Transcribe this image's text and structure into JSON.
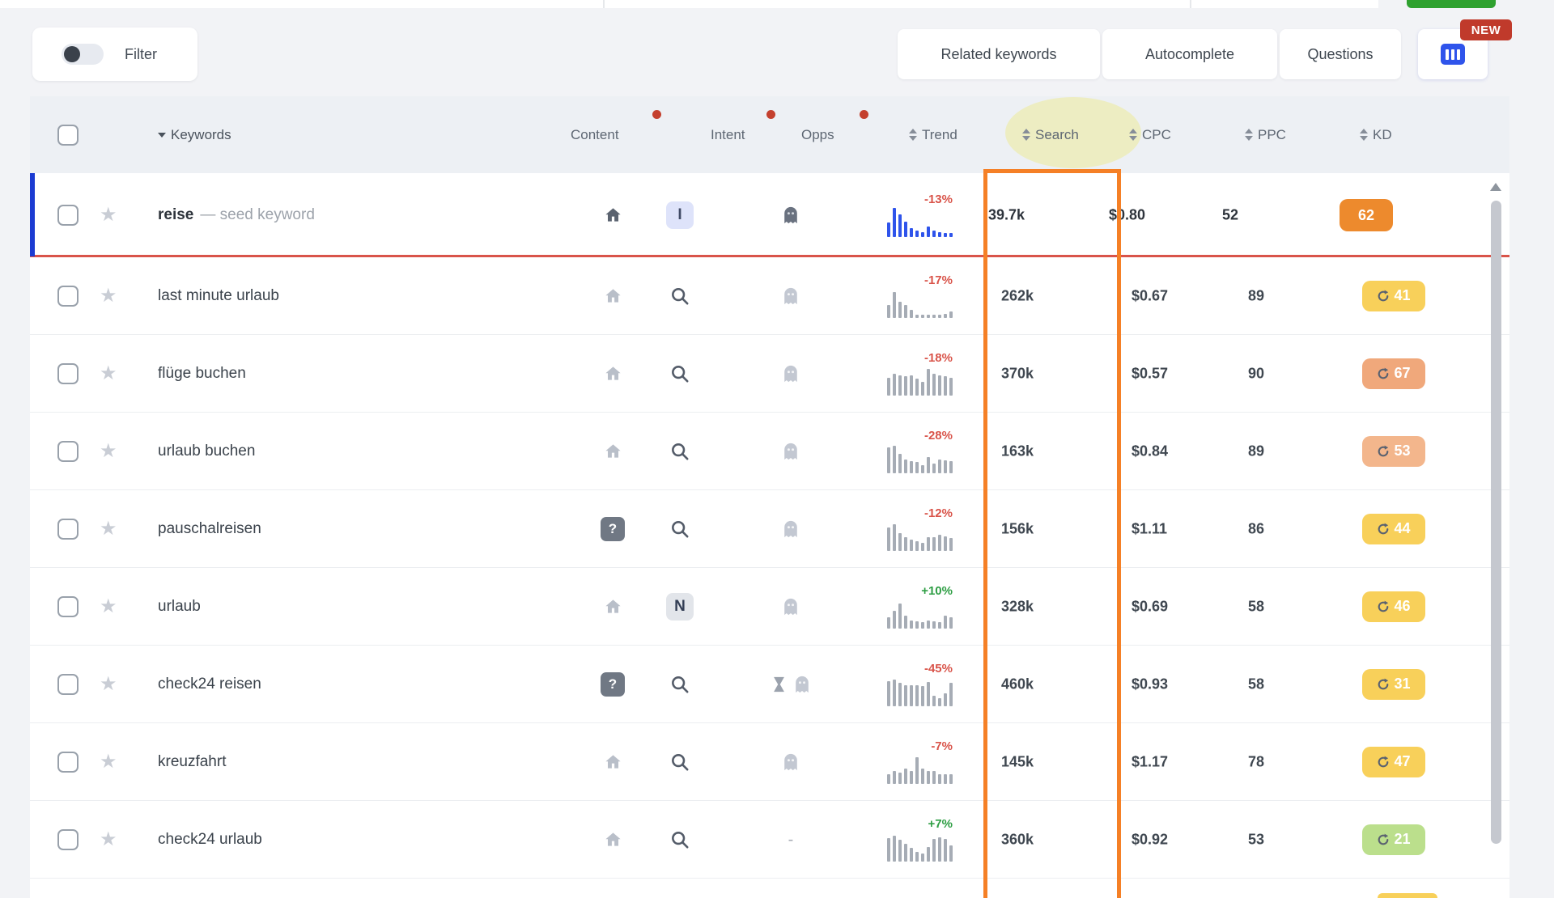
{
  "toolbar": {
    "filter_label": "Filter",
    "tabs": [
      {
        "label": "Related keywords"
      },
      {
        "label": "Autocomplete"
      },
      {
        "label": "Questions"
      }
    ],
    "new_badge": "NEW",
    "columns_button_icon": "columns-icon"
  },
  "table": {
    "header": {
      "keywords": "Keywords",
      "content": "Content",
      "intent": "Intent",
      "opps": "Opps",
      "trend": "Trend",
      "search": "Search",
      "cpc": "CPC",
      "ppc": "PPC",
      "kd": "KD"
    },
    "rows": [
      {
        "keyword": "reise",
        "suffix": "— seed keyword",
        "seed": true,
        "content": "home-icon-dark",
        "intent": "intent-badge-I",
        "opps": [
          "ghost-icon-dark"
        ],
        "trend": "-13%",
        "trend_color": "red",
        "spark_color": "#2f54eb",
        "spark": [
          50,
          100,
          78,
          54,
          30,
          22,
          17,
          36,
          22,
          18,
          15,
          13
        ],
        "search": "39.7k",
        "cpc": "$0.80",
        "ppc": "52",
        "kd": "62",
        "kd_bg": "#ed8a2d",
        "kd_refresh": false
      },
      {
        "keyword": "last minute urlaub",
        "suffix": "",
        "seed": false,
        "content": "home-icon-light",
        "intent": "search-intent-icon",
        "opps": [
          "ghost-icon-light"
        ],
        "trend": "-17%",
        "trend_color": "red",
        "spark_color": "#a6acb5",
        "spark": [
          45,
          90,
          55,
          45,
          28,
          12,
          10,
          10,
          10,
          10,
          13,
          23
        ],
        "search": "262k",
        "cpc": "$0.67",
        "ppc": "89",
        "kd": "41",
        "kd_bg": "#f8d05a",
        "kd_refresh": true
      },
      {
        "keyword": "flüge buchen",
        "suffix": "",
        "seed": false,
        "content": "home-icon-light",
        "intent": "search-intent-icon",
        "opps": [
          "ghost-icon-light"
        ],
        "trend": "-18%",
        "trend_color": "red",
        "spark_color": "#a6acb5",
        "spark": [
          60,
          75,
          70,
          68,
          70,
          58,
          48,
          92,
          75,
          70,
          68,
          62
        ],
        "search": "370k",
        "cpc": "$0.57",
        "ppc": "90",
        "kd": "67",
        "kd_bg": "#f0a87b",
        "kd_refresh": true
      },
      {
        "keyword": "urlaub buchen",
        "suffix": "",
        "seed": false,
        "content": "home-icon-light",
        "intent": "search-intent-icon",
        "opps": [
          "ghost-icon-light"
        ],
        "trend": "-28%",
        "trend_color": "red",
        "spark_color": "#a6acb5",
        "spark": [
          88,
          95,
          68,
          48,
          42,
          38,
          28,
          55,
          32,
          48,
          45,
          42
        ],
        "search": "163k",
        "cpc": "$0.84",
        "ppc": "89",
        "kd": "53",
        "kd_bg": "#f3b68c",
        "kd_refresh": true
      },
      {
        "keyword": "pauschalreisen",
        "suffix": "",
        "seed": false,
        "content": "question-badge",
        "intent": "search-intent-icon",
        "opps": [
          "ghost-icon-light"
        ],
        "trend": "-12%",
        "trend_color": "red",
        "spark_color": "#a6acb5",
        "spark": [
          80,
          92,
          62,
          48,
          38,
          32,
          28,
          48,
          48,
          55,
          50,
          45
        ],
        "search": "156k",
        "cpc": "$1.11",
        "ppc": "86",
        "kd": "44",
        "kd_bg": "#f8d05a",
        "kd_refresh": true
      },
      {
        "keyword": "urlaub",
        "suffix": "",
        "seed": false,
        "content": "home-icon-light",
        "intent": "intent-badge-N",
        "opps": [
          "ghost-icon-light"
        ],
        "trend": "+10%",
        "trend_color": "green",
        "spark_color": "#a6acb5",
        "spark": [
          40,
          62,
          85,
          45,
          28,
          25,
          22,
          28,
          25,
          22,
          45,
          40
        ],
        "search": "328k",
        "cpc": "$0.69",
        "ppc": "58",
        "kd": "46",
        "kd_bg": "#f8d05a",
        "kd_refresh": true
      },
      {
        "keyword": "check24 reisen",
        "suffix": "",
        "seed": false,
        "content": "question-badge",
        "intent": "search-intent-icon",
        "opps": [
          "hourglass-icon",
          "ghost-icon-light"
        ],
        "trend": "-45%",
        "trend_color": "red",
        "spark_color": "#a6acb5",
        "spark": [
          85,
          92,
          80,
          72,
          72,
          72,
          70,
          82,
          35,
          28,
          45,
          80
        ],
        "search": "460k",
        "cpc": "$0.93",
        "ppc": "58",
        "kd": "31",
        "kd_bg": "#f8d05a",
        "kd_refresh": true
      },
      {
        "keyword": "kreuzfahrt",
        "suffix": "",
        "seed": false,
        "content": "home-icon-light",
        "intent": "search-intent-icon",
        "opps": [
          "ghost-icon-light"
        ],
        "trend": "-7%",
        "trend_color": "red",
        "spark_color": "#a6acb5",
        "spark": [
          32,
          45,
          40,
          52,
          45,
          92,
          52,
          45,
          45,
          32,
          32,
          32
        ],
        "search": "145k",
        "cpc": "$1.17",
        "ppc": "78",
        "kd": "47",
        "kd_bg": "#f8d05a",
        "kd_refresh": true
      },
      {
        "keyword": "check24 urlaub",
        "suffix": "",
        "seed": false,
        "content": "home-icon-light",
        "intent": "search-intent-icon",
        "opps": [
          "dash"
        ],
        "trend": "+7%",
        "trend_color": "green",
        "spark_color": "#a6acb5",
        "spark": [
          80,
          88,
          75,
          60,
          48,
          32,
          28,
          50,
          78,
          82,
          78,
          55
        ],
        "search": "360k",
        "cpc": "$0.92",
        "ppc": "53",
        "kd": "21",
        "kd_bg": "#bbdf8c",
        "kd_refresh": true
      }
    ]
  },
  "colors": {
    "orange_annotation_box": "#f58026",
    "search_header_highlight": "#ededc2",
    "seed_row_bar": "#1b3bd2",
    "seed_row_divider": "#d9544a",
    "trend_up": "#2e9e44",
    "trend_down": "#d9544a",
    "spark_seed": "#2f54eb",
    "spark_default": "#a6acb5",
    "new_badge_bg": "#c03a2b",
    "columns_icon_bg": "#2f54eb",
    "kd_orange": "#ed8a2d",
    "kd_yellow": "#f8d05a",
    "kd_salmon": "#f0a87b",
    "kd_green": "#bbdf8c"
  }
}
